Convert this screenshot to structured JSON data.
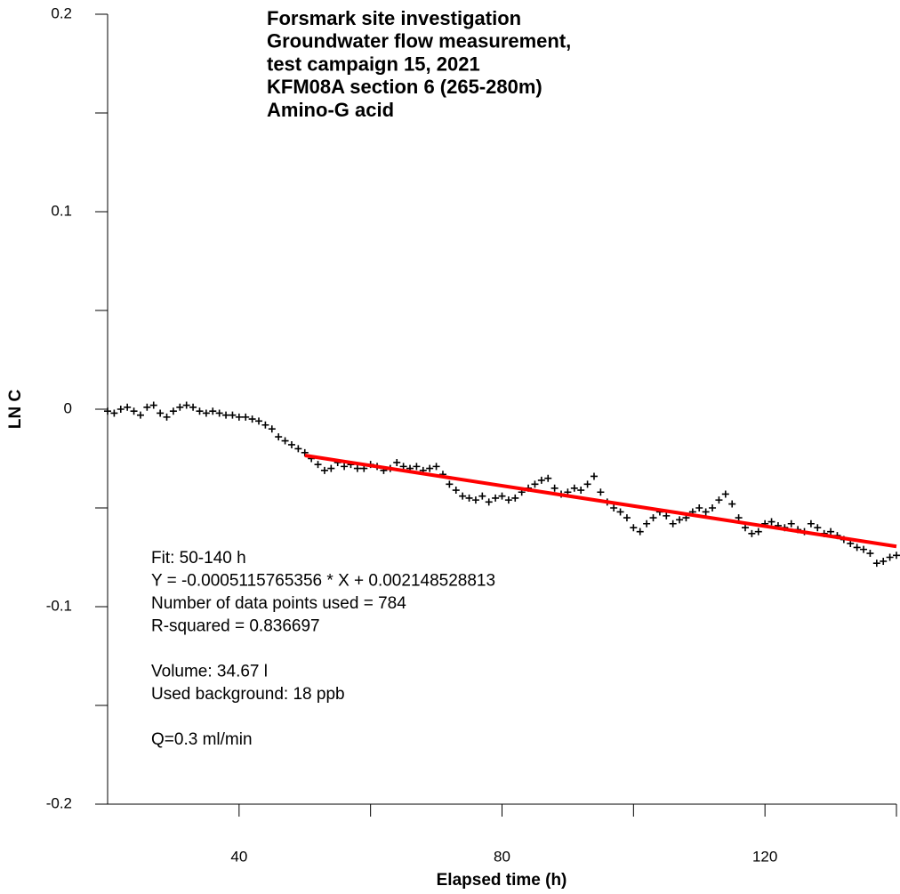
{
  "chart_data": {
    "type": "scatter",
    "title_lines": [
      "Forsmark site investigation",
      "Groundwater flow measurement,",
      "test campaign 15, 2021",
      "KFM08A section 6 (265-280m)",
      "Amino-G acid"
    ],
    "x_label": "Elapsed time (h)",
    "y_label": "LN C",
    "annotation_groups": [
      [
        "Fit: 50-140 h",
        "Y = -0.0005115765356 * X + 0.002148528813",
        "Number of data points used = 784",
        "R-squared = 0.836697"
      ],
      [
        "Volume: 34.67 l",
        "Used background: 18 ppb"
      ],
      [
        "Q=0.3 ml/min"
      ]
    ],
    "xlim": [
      20,
      140
    ],
    "ylim": [
      -0.2,
      0.2
    ],
    "xticks": [
      40,
      80,
      120
    ],
    "xminor_ticks": [
      60,
      100,
      140
    ],
    "yticks": [
      0.2,
      0.1,
      0,
      -0.1,
      -0.2
    ],
    "yminor_ticks": [
      0.15,
      0.05,
      -0.05,
      -0.15
    ],
    "series": [
      {
        "color": "#000000",
        "marker": "+",
        "x": [
          20,
          21,
          22,
          23,
          24,
          25,
          26,
          27,
          28,
          29,
          30,
          31,
          32,
          33,
          34,
          35,
          36,
          37,
          38,
          39,
          40,
          41,
          42,
          43,
          44,
          45,
          46,
          47,
          48,
          49,
          50,
          51,
          52,
          53,
          54,
          55,
          56,
          57,
          58,
          59,
          60,
          61,
          62,
          63,
          64,
          65,
          66,
          67,
          68,
          69,
          70,
          71,
          72,
          73,
          74,
          75,
          76,
          77,
          78,
          79,
          80,
          81,
          82,
          83,
          84,
          85,
          86,
          87,
          88,
          89,
          90,
          91,
          92,
          93,
          94,
          95,
          96,
          97,
          98,
          99,
          100,
          101,
          102,
          103,
          104,
          105,
          106,
          107,
          108,
          109,
          110,
          111,
          112,
          113,
          114,
          115,
          116,
          117,
          118,
          119,
          120,
          121,
          122,
          123,
          124,
          125,
          126,
          127,
          128,
          129,
          130,
          131,
          132,
          133,
          134,
          135,
          136,
          137,
          138,
          139,
          140
        ],
        "values": [
          -0.001,
          -0.002,
          0,
          0.001,
          -0.001,
          -0.003,
          0.001,
          0.002,
          -0.002,
          -0.004,
          -0.001,
          0.001,
          0.002,
          0.001,
          -0.001,
          -0.002,
          -0.001,
          -0.002,
          -0.003,
          -0.003,
          -0.004,
          -0.004,
          -0.005,
          -0.006,
          -0.008,
          -0.01,
          -0.014,
          -0.016,
          -0.018,
          -0.02,
          -0.022,
          -0.025,
          -0.028,
          -0.031,
          -0.03,
          -0.027,
          -0.029,
          -0.028,
          -0.03,
          -0.03,
          -0.028,
          -0.029,
          -0.031,
          -0.03,
          -0.027,
          -0.029,
          -0.03,
          -0.029,
          -0.031,
          -0.03,
          -0.029,
          -0.033,
          -0.038,
          -0.041,
          -0.044,
          -0.045,
          -0.046,
          -0.044,
          -0.047,
          -0.045,
          -0.044,
          -0.046,
          -0.045,
          -0.042,
          -0.04,
          -0.038,
          -0.036,
          -0.035,
          -0.04,
          -0.043,
          -0.042,
          -0.04,
          -0.041,
          -0.038,
          -0.034,
          -0.042,
          -0.047,
          -0.05,
          -0.052,
          -0.055,
          -0.06,
          -0.062,
          -0.058,
          -0.055,
          -0.052,
          -0.054,
          -0.058,
          -0.056,
          -0.055,
          -0.052,
          -0.05,
          -0.052,
          -0.05,
          -0.046,
          -0.043,
          -0.048,
          -0.055,
          -0.06,
          -0.063,
          -0.062,
          -0.058,
          -0.057,
          -0.059,
          -0.06,
          -0.058,
          -0.061,
          -0.062,
          -0.058,
          -0.06,
          -0.063,
          -0.062,
          -0.064,
          -0.066,
          -0.068,
          -0.07,
          -0.071,
          -0.073,
          -0.078,
          -0.077,
          -0.075,
          -0.074
        ]
      }
    ],
    "fit": {
      "color": "#ff0000",
      "x": [
        50,
        140
      ],
      "values": [
        -0.02343,
        -0.06947
      ]
    }
  }
}
